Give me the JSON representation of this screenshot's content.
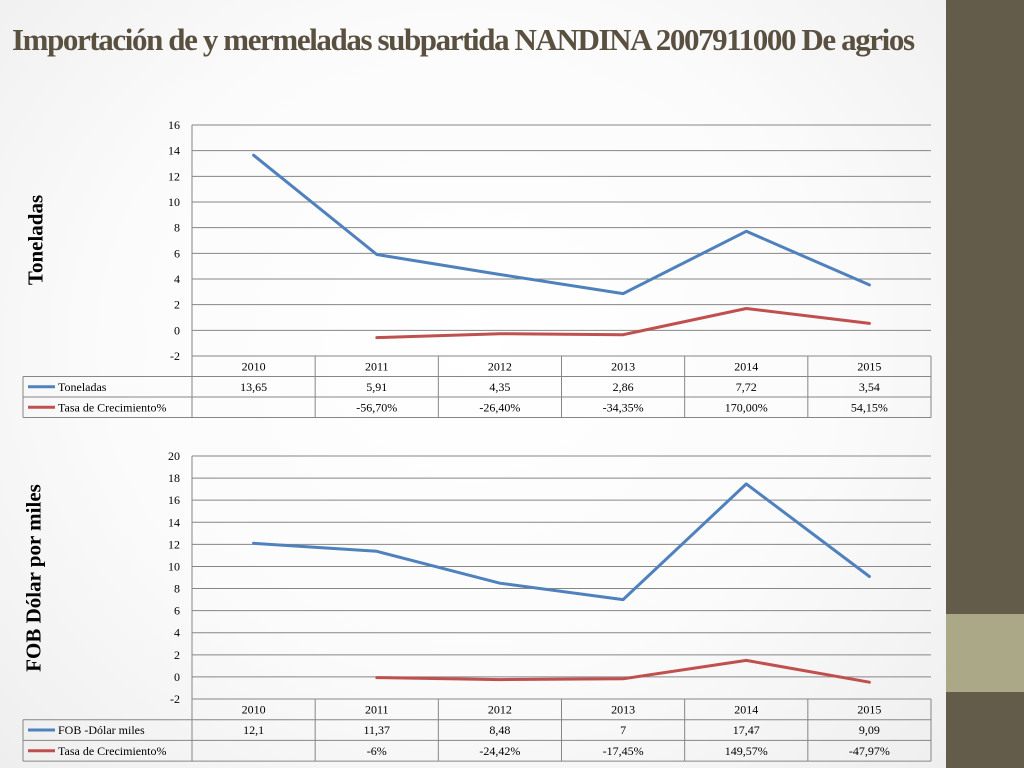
{
  "slide": {
    "title": "Importación de y mermeladas subpartida NANDINA 2007911000 De agrios",
    "colors": {
      "sidebar": "#645c4a",
      "sidebar_band": "#aba887",
      "title": "#5a5040"
    }
  },
  "chart_data": [
    {
      "type": "line",
      "ylabel": "Toneladas",
      "ylim": [
        -2,
        16
      ],
      "ytick_step": 2,
      "yticks": [
        "-2",
        "0",
        "2",
        "4",
        "6",
        "8",
        "10",
        "12",
        "14",
        "16"
      ],
      "grid": true,
      "categories": [
        "2010",
        "2011",
        "2012",
        "2013",
        "2014",
        "2015"
      ],
      "series": [
        {
          "name": "Toneladas",
          "color": "#4f81bd",
          "values": [
            13.65,
            5.91,
            4.35,
            2.86,
            7.72,
            3.54
          ],
          "labels": [
            "13,65",
            "5,91",
            "4,35",
            "2,86",
            "7,72",
            "3,54"
          ]
        },
        {
          "name": "Tasa de Crecimiento%",
          "color": "#c0504d",
          "values": [
            null,
            -0.567,
            -0.264,
            -0.3435,
            1.7,
            0.5415
          ],
          "labels": [
            "",
            "-56,70%",
            "-26,40%",
            "-34,35%",
            "170,00%",
            "54,15%"
          ]
        }
      ]
    },
    {
      "type": "line",
      "ylabel": "FOB Dólar por miles",
      "ylim": [
        -2,
        20
      ],
      "ytick_step": 2,
      "yticks": [
        "-2",
        "0",
        "2",
        "4",
        "6",
        "8",
        "10",
        "12",
        "14",
        "16",
        "18",
        "20"
      ],
      "grid": true,
      "categories": [
        "2010",
        "2011",
        "2012",
        "2013",
        "2014",
        "2015"
      ],
      "series": [
        {
          "name": "FOB -Dólar miles",
          "color": "#4f81bd",
          "values": [
            12.1,
            11.37,
            8.48,
            7,
            17.47,
            9.09
          ],
          "labels": [
            "12,1",
            "11,37",
            "8,48",
            "7",
            "17,47",
            "9,09"
          ]
        },
        {
          "name": "Tasa de Crecimiento%",
          "color": "#c0504d",
          "values": [
            null,
            -0.06,
            -0.2442,
            -0.1745,
            1.4957,
            -0.4797
          ],
          "labels": [
            "",
            "-6%",
            "-24,42%",
            "-17,45%",
            "149,57%",
            "-47,97%"
          ]
        }
      ]
    }
  ]
}
